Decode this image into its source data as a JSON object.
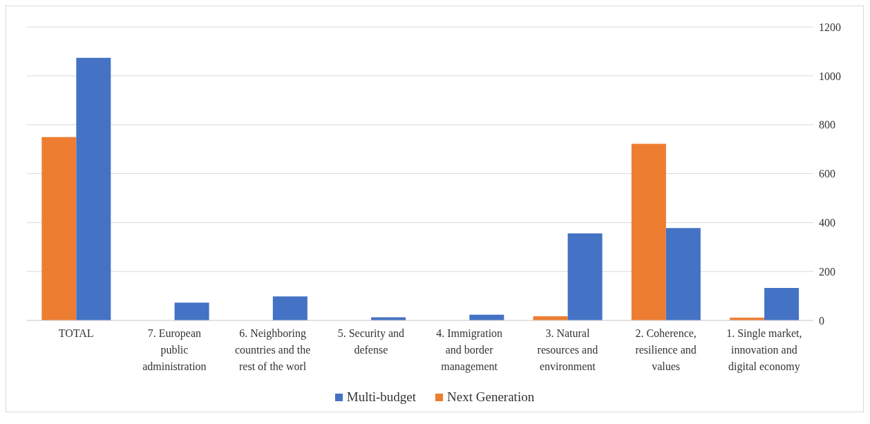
{
  "chart_data": {
    "type": "bar",
    "categories": [
      "TOTAL",
      "7. European public administration",
      "6. Neighboring countries and the rest of the worl",
      "5. Security and defense",
      "4. Immigration and border management",
      "3. Natural resources and environment",
      "2. Coherence, resilience and values",
      "1. Single market, innovation and digital economy"
    ],
    "series": [
      {
        "name": "Multi-budget",
        "color": "#4472c4",
        "values": [
          1074,
          73,
          98,
          13,
          23,
          356,
          378,
          133
        ]
      },
      {
        "name": "Next Generation",
        "color": "#ed7d31",
        "values": [
          750,
          null,
          null,
          null,
          null,
          17,
          722,
          11
        ]
      }
    ],
    "ylim": [
      0,
      1200
    ],
    "yticks": [
      0,
      200,
      400,
      600,
      800,
      1000,
      1200
    ],
    "grid": "y",
    "legend": "bottom"
  }
}
